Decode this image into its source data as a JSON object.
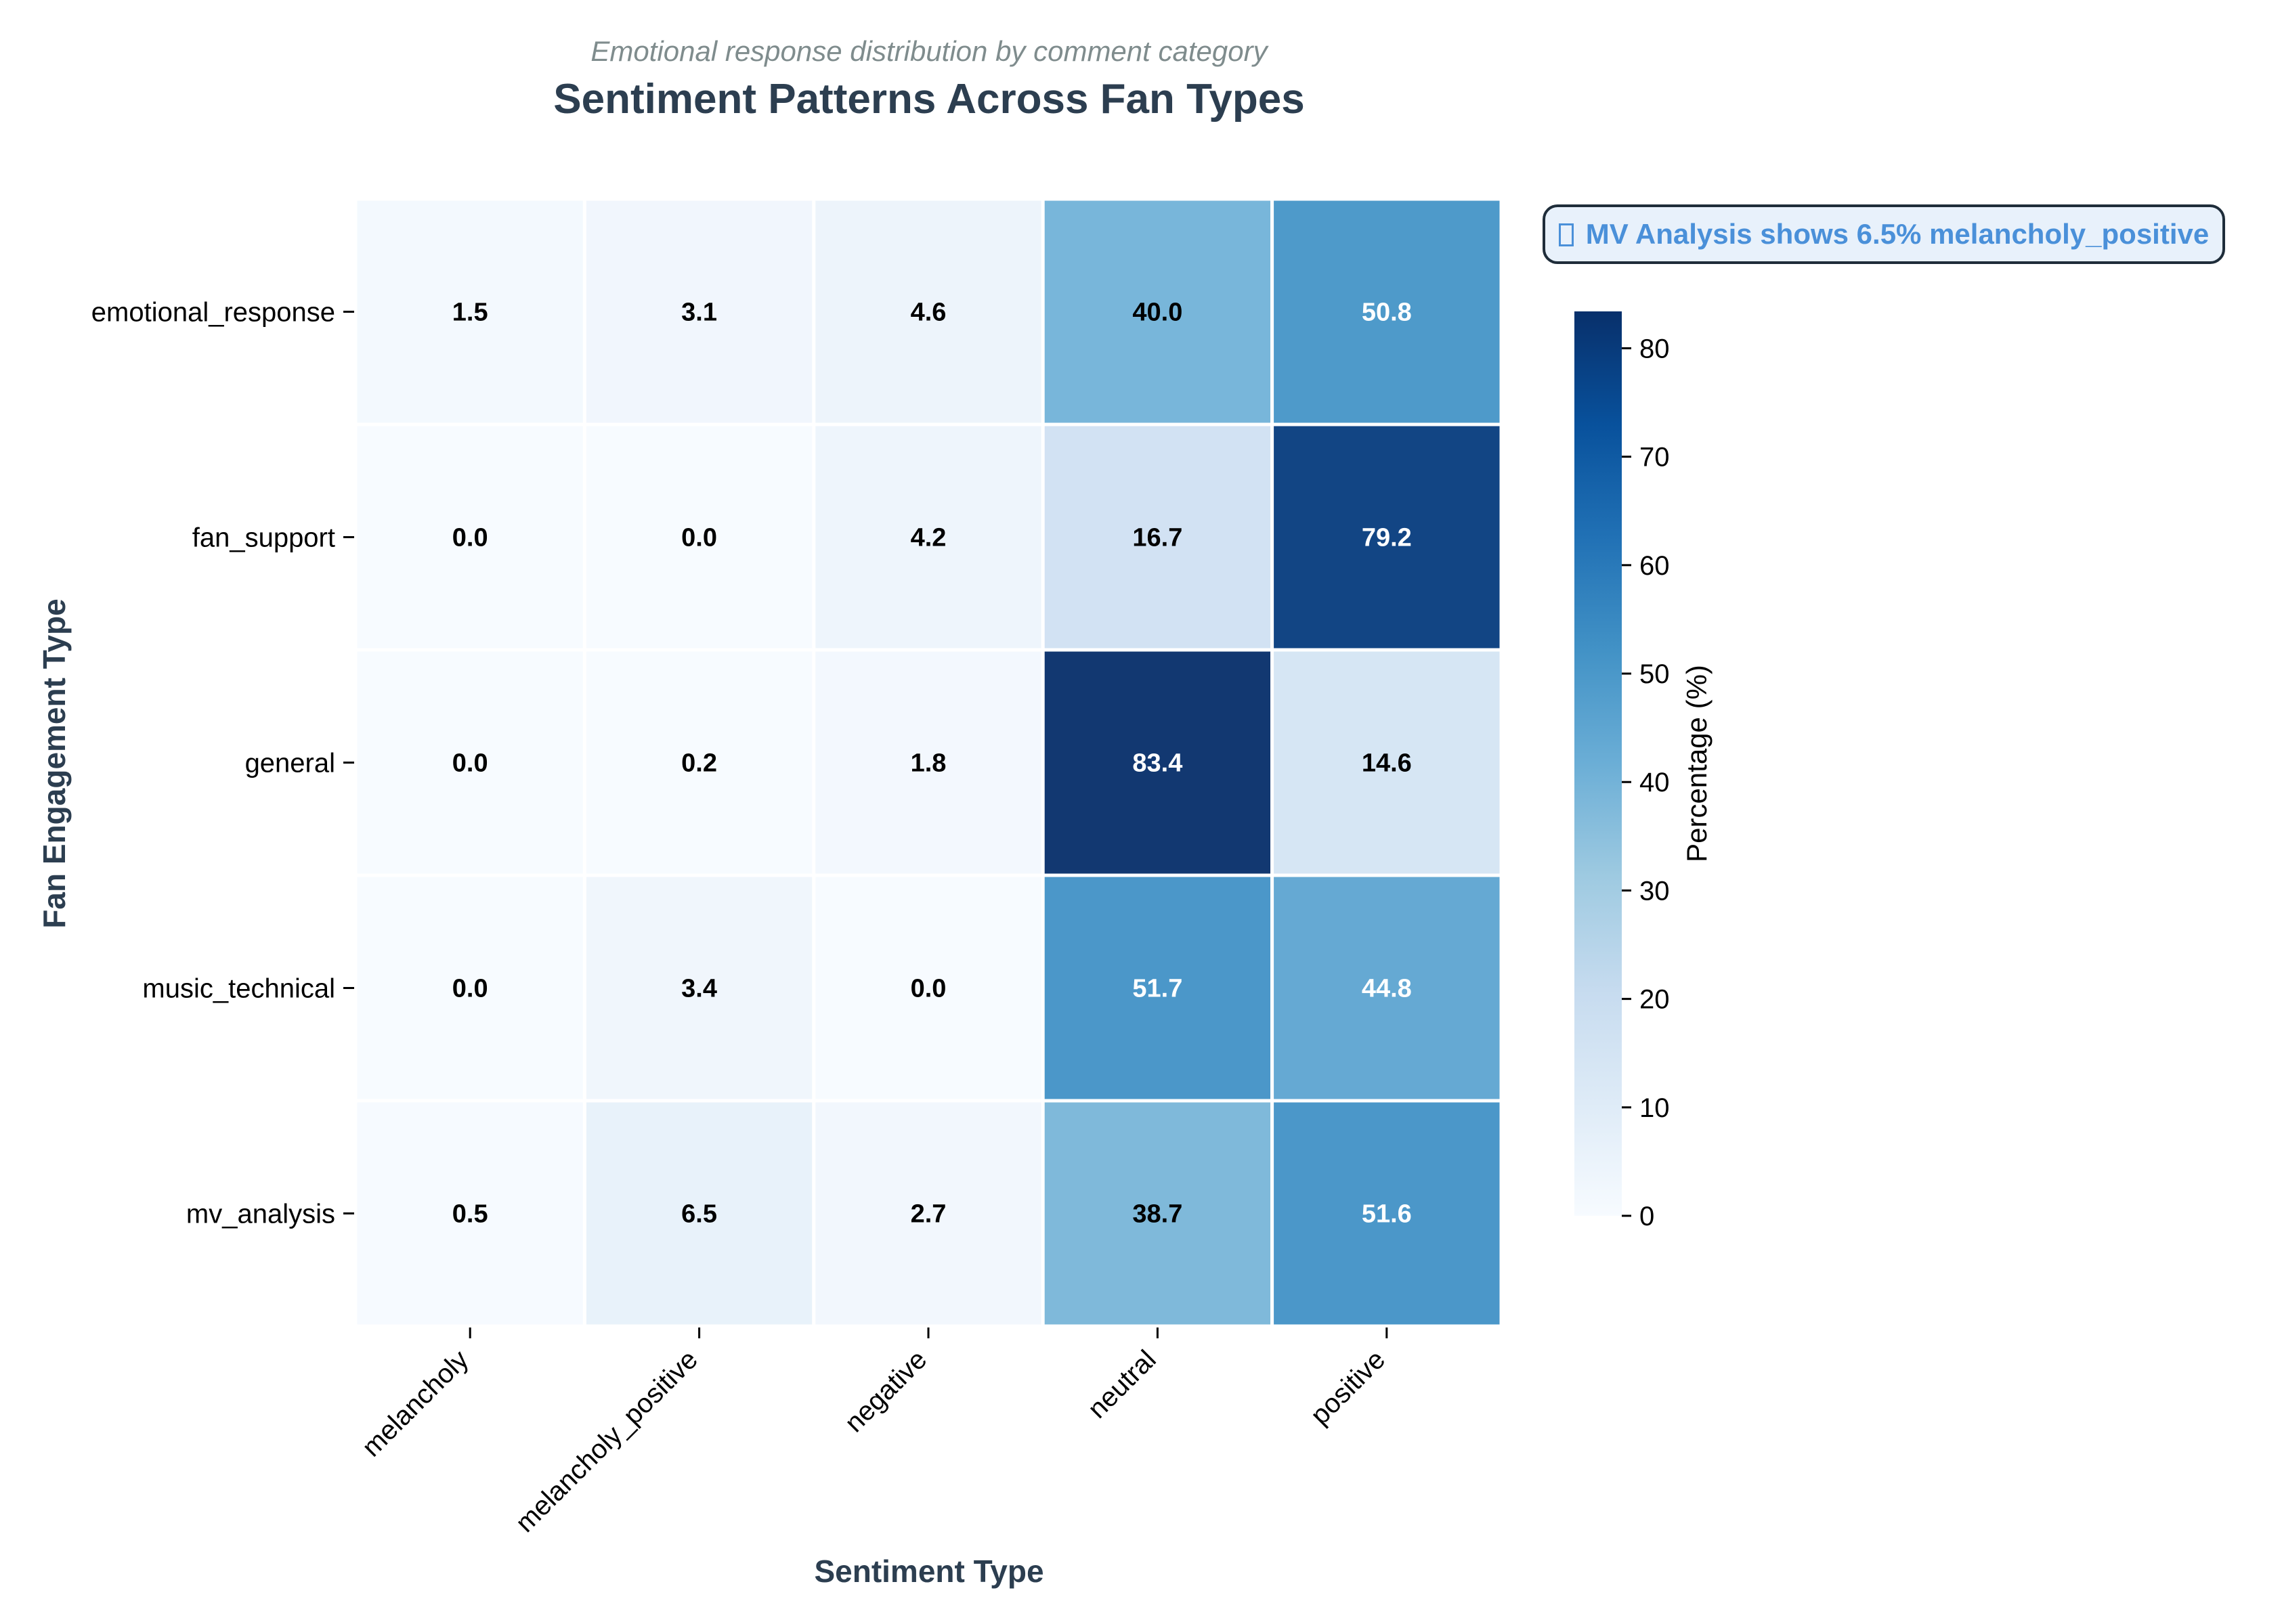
{
  "chart_data": {
    "type": "heatmap",
    "subtitle": "Emotional response distribution by comment category",
    "title": "Sentiment Patterns Across Fan Types",
    "xlabel": "Sentiment Type",
    "ylabel": "Fan Engagement Type",
    "x_categories": [
      "melancholy",
      "melancholy_positive",
      "negative",
      "neutral",
      "positive"
    ],
    "y_categories": [
      "emotional_response",
      "fan_support",
      "general",
      "music_technical",
      "mv_analysis"
    ],
    "values": [
      [
        1.5,
        3.1,
        4.6,
        40.0,
        50.8
      ],
      [
        0.0,
        0.0,
        4.2,
        16.7,
        79.2
      ],
      [
        0.0,
        0.2,
        1.8,
        83.4,
        14.6
      ],
      [
        0.0,
        3.4,
        0.0,
        51.7,
        44.8
      ],
      [
        0.5,
        6.5,
        2.7,
        38.7,
        51.6
      ]
    ],
    "value_format": "0.0",
    "colormap": "Blues",
    "colorbar": {
      "label": "Percentage (%)",
      "range": [
        0,
        83.4
      ],
      "ticks": [
        0,
        10,
        20,
        30,
        40,
        50,
        60,
        70,
        80
      ]
    },
    "annotation": "MV Analysis shows 6.5% melancholy_positive",
    "annotation_icon": "unknown-glyph-icon"
  },
  "colors": {
    "title": "#2c3e50",
    "subtitle": "#7f8c8d",
    "annotation_text": "#4a90d9",
    "annotation_bg": "#e8f1fb",
    "annotation_border": "#1f2d3a",
    "cell_border": "#ffffff",
    "label_dark": "#000000",
    "label_light": "#ffffff"
  }
}
